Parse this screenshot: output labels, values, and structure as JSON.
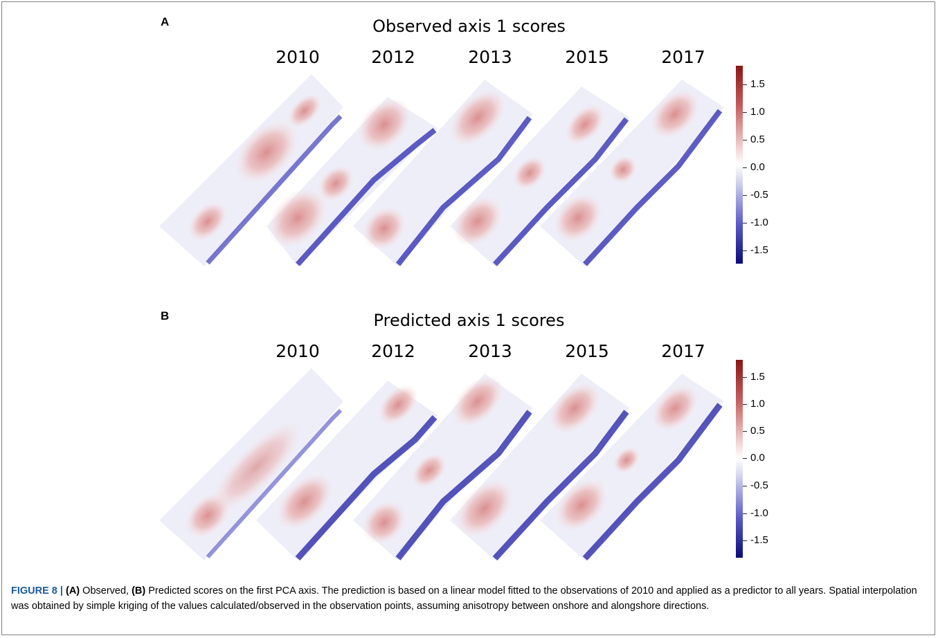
{
  "panels": [
    {
      "letter": "A",
      "title": "Observed axis 1 scores",
      "years": [
        "2010",
        "2012",
        "2013",
        "2015",
        "2017"
      ]
    },
    {
      "letter": "B",
      "title": "Predicted axis 1 scores",
      "years": [
        "2010",
        "2012",
        "2013",
        "2015",
        "2017"
      ]
    }
  ],
  "colorbar": {
    "ticks": [
      "1.5",
      "1.0",
      "0.5",
      "0.0",
      "-0.5",
      "-1.0",
      "-1.5"
    ],
    "colors": {
      "max": "#8c1515",
      "mid": "#ffffff",
      "min": "#0a0a7a"
    }
  },
  "caption": {
    "figure_label": "FIGURE 8 |",
    "a_label": "(A)",
    "a_text": " Observed, ",
    "b_label": "(B)",
    "rest": " Predicted scores on the first PCA axis. The prediction is based on a linear model fitted to the observations of 2010 and applied as a predictor to all years. Spatial interpolation was obtained by simple kriging of the values calculated/observed in the observation points, assuming anisotropy between onshore and alongshore directions."
  }
}
